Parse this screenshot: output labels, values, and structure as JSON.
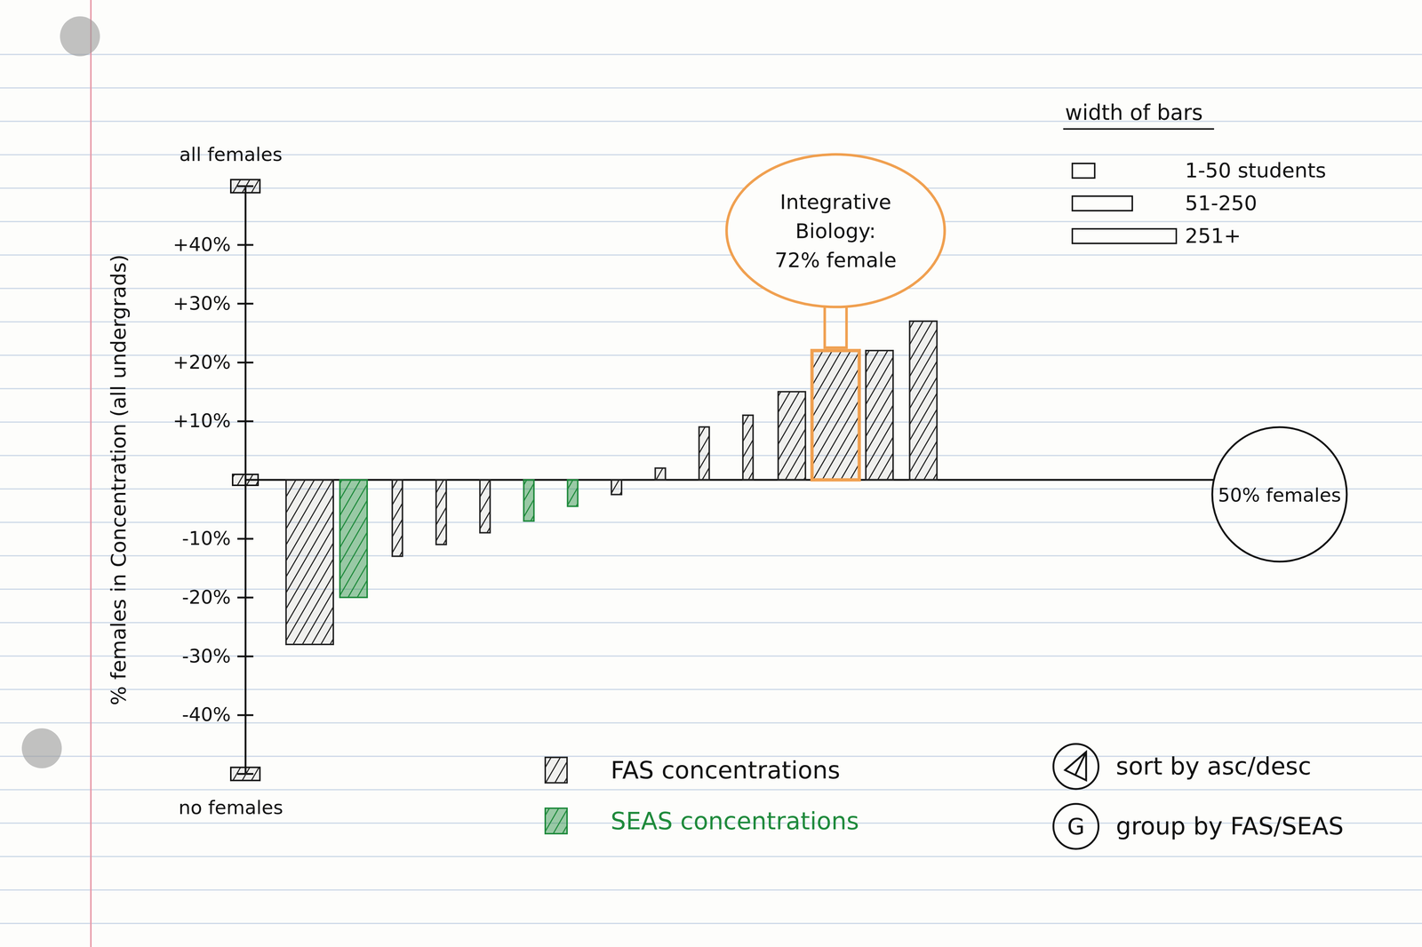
{
  "chart_data": {
    "type": "bar",
    "y_label": "% females in Concentration (all undergrads)",
    "categories": [
      null,
      null,
      null,
      null,
      null,
      null,
      null,
      null,
      null,
      null,
      null,
      null,
      null,
      null,
      null
    ],
    "series": [
      {
        "name": "FAS concentrations",
        "color": "#222222",
        "values": [
          -28,
          null,
          -13,
          -11,
          -9,
          null,
          null,
          -2.5,
          2,
          9,
          11,
          15,
          22,
          22,
          27
        ]
      },
      {
        "name": "SEAS concentrations",
        "color": "#1f8a3c",
        "values": [
          null,
          -20,
          null,
          null,
          null,
          -7,
          -4.5,
          null,
          null,
          null,
          null,
          null,
          null,
          null,
          null
        ]
      }
    ],
    "sizes": [
      "251+",
      "51-250",
      "1-50 students",
      "1-50 students",
      "1-50 students",
      "1-50 students",
      "1-50 students",
      "1-50 students",
      "1-50 students",
      "1-50 students",
      "1-50 students",
      "51-250",
      "251+",
      "51-250",
      "51-250"
    ],
    "size_legend": {
      "title": "width of bars",
      "labels": [
        "1-50 students",
        "51-250",
        "251+"
      ]
    },
    "ylim": [
      -50,
      50
    ],
    "yticks": [
      {
        "value": -50,
        "label": "no females"
      },
      {
        "value": -40,
        "label": "-40%"
      },
      {
        "value": -30,
        "label": "-30%"
      },
      {
        "value": -20,
        "label": "-20%"
      },
      {
        "value": -10,
        "label": "-10%"
      },
      {
        "value": 10,
        "label": "+10%"
      },
      {
        "value": 20,
        "label": "+20%"
      },
      {
        "value": 30,
        "label": "+30%"
      },
      {
        "value": 40,
        "label": "+40%"
      },
      {
        "value": 50,
        "label": "all females"
      }
    ],
    "reference_line": {
      "value": 0,
      "label": "50% females"
    },
    "annotations": [
      {
        "index": 12,
        "color": "#f0a050",
        "lines": [
          "Integrative",
          "Biology:",
          "72% female"
        ]
      }
    ],
    "controls": [
      {
        "label": "sort by asc/desc"
      },
      {
        "icon": "G",
        "label": "group by FAS/SEAS"
      }
    ]
  }
}
